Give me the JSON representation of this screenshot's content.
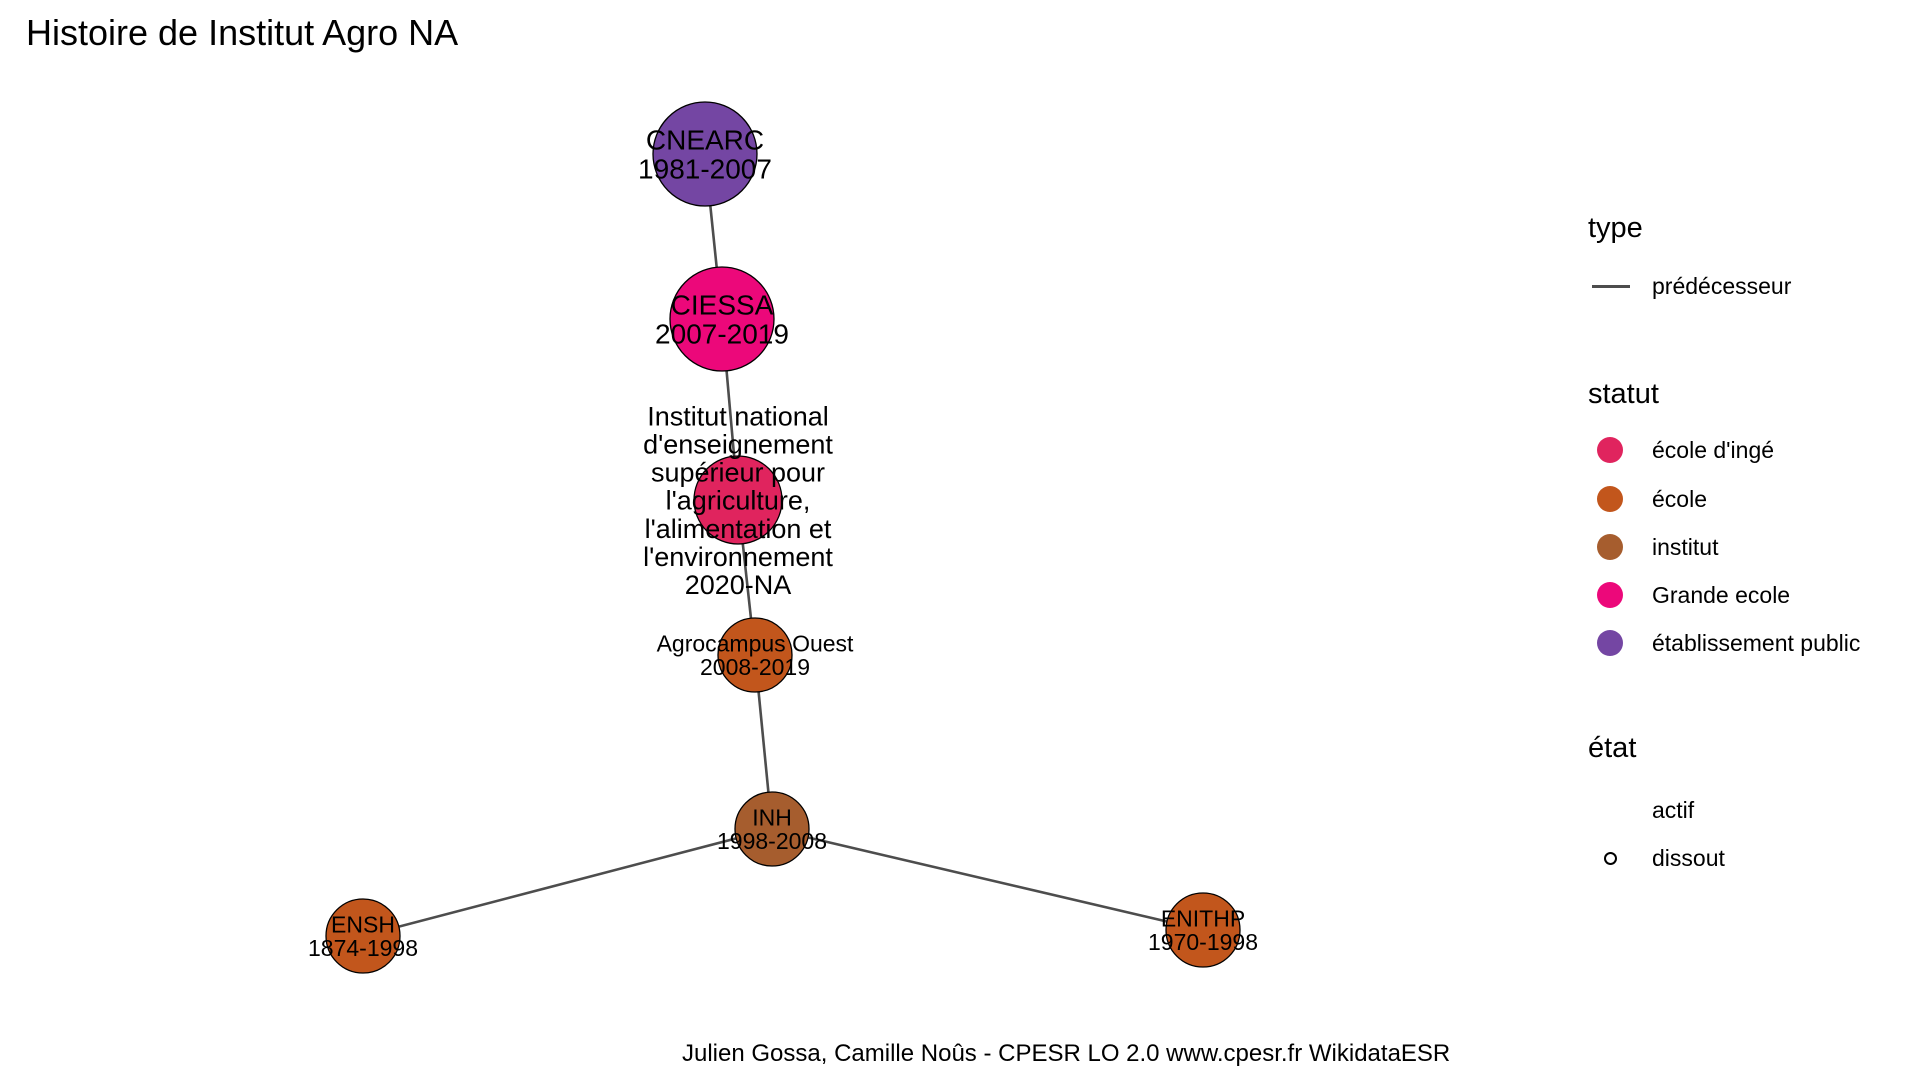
{
  "title": "Histoire de Institut Agro NA",
  "caption": "Julien Gossa, Camille Noûs - CPESR LO 2.0 www.cpesr.fr WikidataESR",
  "nodes": [
    {
      "id": "cnearc",
      "name": "CNEARC",
      "years": "1981-2007",
      "statut": "établissement public"
    },
    {
      "id": "ciessa",
      "name": "CIESSA",
      "years": "2007-2019",
      "statut": "Grande ecole"
    },
    {
      "id": "institut",
      "name": "Institut national d'enseignement supérieur pour l'agriculture, l'alimentation et l'environnement",
      "name_lines": [
        "Institut national",
        "d'enseignement",
        "supérieur pour",
        "l'agriculture,",
        "l'alimentation et",
        "l'environnement"
      ],
      "years": "2020-NA",
      "statut": "école d'ingé"
    },
    {
      "id": "agrocampus",
      "name": "Agrocampus Ouest",
      "years": "2008-2019",
      "statut": "école"
    },
    {
      "id": "inh",
      "name": "INH",
      "years": "1998-2008",
      "statut": "institut"
    },
    {
      "id": "ensh",
      "name": "ENSH",
      "years": "1874-1998",
      "statut": "école"
    },
    {
      "id": "enithp",
      "name": "ENITHP",
      "years": "1970-1998",
      "statut": "école"
    }
  ],
  "edges": [
    {
      "from": "cnearc",
      "to": "ciessa",
      "type": "prédécesseur"
    },
    {
      "from": "ciessa",
      "to": "institut",
      "type": "prédécesseur"
    },
    {
      "from": "institut",
      "to": "agrocampus",
      "type": "prédécesseur"
    },
    {
      "from": "agrocampus",
      "to": "inh",
      "type": "prédécesseur"
    },
    {
      "from": "inh",
      "to": "ensh",
      "type": "prédécesseur"
    },
    {
      "from": "inh",
      "to": "enithp",
      "type": "prédécesseur"
    }
  ],
  "legend": {
    "type": {
      "title": "type",
      "items": [
        {
          "label": "prédécesseur"
        }
      ]
    },
    "statut": {
      "title": "statut",
      "items": [
        {
          "label": "école d'ingé",
          "color": "#e0245e"
        },
        {
          "label": "école",
          "color": "#c2561c"
        },
        {
          "label": "institut",
          "color": "#a65d2e"
        },
        {
          "label": "Grande ecole",
          "color": "#ec087a"
        },
        {
          "label": "établissement public",
          "color": "#7446a3"
        }
      ]
    },
    "etat": {
      "title": "état",
      "items": [
        {
          "label": "actif"
        },
        {
          "label": "dissout"
        }
      ]
    }
  },
  "colors": {
    "edge": "#4d4d4d",
    "node_stroke": "#000000"
  }
}
